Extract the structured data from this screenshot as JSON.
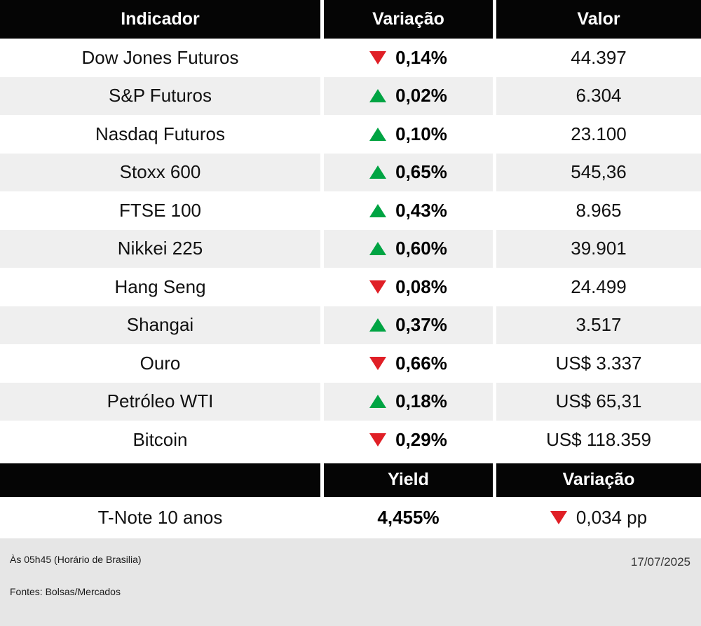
{
  "chart_data": [
    {
      "type": "table",
      "columns": [
        "Indicador",
        "Variação",
        "Valor"
      ],
      "rows": [
        {
          "indicator": "Dow Jones Futuros",
          "direction": "down",
          "variation": "0,14%",
          "value": "44.397"
        },
        {
          "indicator": "S&P Futuros",
          "direction": "up",
          "variation": "0,02%",
          "value": "6.304"
        },
        {
          "indicator": "Nasdaq Futuros",
          "direction": "up",
          "variation": "0,10%",
          "value": "23.100"
        },
        {
          "indicator": "Stoxx 600",
          "direction": "up",
          "variation": "0,65%",
          "value": "545,36"
        },
        {
          "indicator": "FTSE 100",
          "direction": "up",
          "variation": "0,43%",
          "value": "8.965"
        },
        {
          "indicator": "Nikkei 225",
          "direction": "up",
          "variation": "0,60%",
          "value": "39.901"
        },
        {
          "indicator": "Hang Seng",
          "direction": "down",
          "variation": "0,08%",
          "value": "24.499"
        },
        {
          "indicator": "Shangai",
          "direction": "up",
          "variation": "0,37%",
          "value": "3.517"
        },
        {
          "indicator": "Ouro",
          "direction": "down",
          "variation": "0,66%",
          "value": "US$ 3.337"
        },
        {
          "indicator": "Petróleo WTI",
          "direction": "up",
          "variation": "0,18%",
          "value": "US$ 65,31"
        },
        {
          "indicator": "Bitcoin",
          "direction": "down",
          "variation": "0,29%",
          "value": "US$ 118.359"
        }
      ]
    },
    {
      "type": "table",
      "columns": [
        "",
        "Yield",
        "Variação"
      ],
      "rows": [
        {
          "indicator": "T-Note 10 anos",
          "yield": "4,455%",
          "direction": "down",
          "variation": "0,034 pp"
        }
      ]
    }
  ],
  "footer": {
    "time_note": "Às 05h45 (Horário de Brasilia)",
    "date": "17/07/2025",
    "sources": "Fontes: Bolsas/Mercados"
  },
  "colors": {
    "up": "#00a443",
    "down": "#e01f26",
    "header_bg": "#050505",
    "row_alt_bg": "#efefef",
    "footer_bg": "#e6e6e6"
  }
}
